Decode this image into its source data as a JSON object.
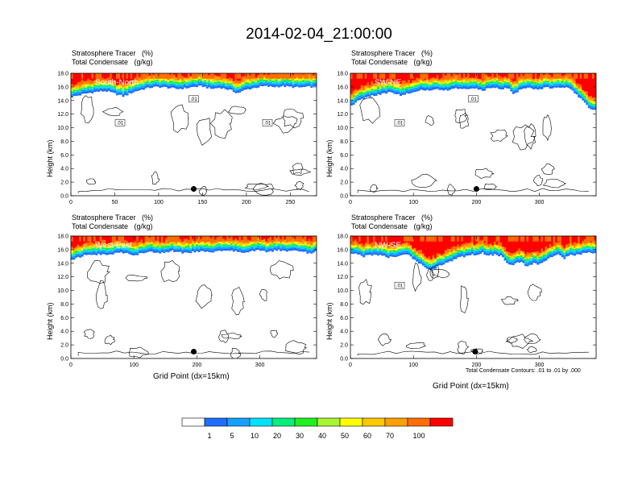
{
  "title": "2014-02-04_21:00:00",
  "panel_title_line1": "Stratosphere Tracer   (%)",
  "panel_title_line2": "Total Condensate   (g/kg)",
  "ylabel": "Height (km)",
  "xlabel": "Grid Point (dx=15km)",
  "contour_note": "Total Condensate Contours: .01 to .01 by .000",
  "colors": {
    "levels": [
      "#ffffff",
      "#1e6eff",
      "#14a0ff",
      "#00e0ff",
      "#00f07a",
      "#1ef01e",
      "#a8f532",
      "#ffff00",
      "#ffc800",
      "#ffa000",
      "#ff6e00",
      "#ff0000"
    ],
    "contour": "#000000"
  },
  "legend": {
    "labels": [
      "1",
      "5",
      "10",
      "20",
      "30",
      "40",
      "50",
      "60",
      "70",
      "100"
    ]
  },
  "chart_data": [
    {
      "type": "heatmap",
      "label": "South-North",
      "xlim": [
        0,
        280
      ],
      "ylim": [
        0,
        18
      ],
      "xticks": [
        "0",
        "50",
        "100",
        "150",
        "200",
        "250"
      ],
      "xtick_values": [
        0,
        50,
        100,
        150,
        200,
        250
      ],
      "yticks": [
        "0.0",
        "2.0",
        "4.0",
        "6.0",
        "8.0",
        "10.0",
        "12.0",
        "14.0",
        "16.0",
        "18.0"
      ],
      "tracer_base_km": [
        14.5,
        14.8,
        15.1,
        15.3,
        15.4,
        15.0,
        14.6,
        15.2,
        15.6,
        15.9,
        16.0,
        15.9,
        15.7,
        15.8,
        16.0,
        16.1,
        15.7,
        15.9,
        15.6,
        15.1,
        15.6,
        15.9,
        16.1,
        16.0,
        16.1,
        16.0,
        15.9,
        16.0,
        16.0
      ],
      "contour_labels": [
        ".01",
        ".01",
        ".01"
      ],
      "marker": {
        "x": 140,
        "y_km": 1.0
      }
    },
    {
      "type": "heatmap",
      "label": "SW-NE",
      "xlim": [
        0,
        390
      ],
      "ylim": [
        0,
        18
      ],
      "xticks": [
        "0",
        "100",
        "200",
        "300"
      ],
      "xtick_values": [
        0,
        100,
        200,
        300
      ],
      "yticks": [
        "0.0",
        "2.0",
        "4.0",
        "6.0",
        "8.0",
        "10.0",
        "12.0",
        "14.0",
        "16.0",
        "18.0"
      ],
      "tracer_base_km": [
        13.0,
        13.8,
        14.3,
        14.6,
        14.8,
        15.0,
        15.2,
        15.0,
        14.8,
        15.1,
        15.3,
        15.5,
        15.4,
        15.6,
        15.7,
        15.5,
        15.6,
        15.8,
        15.7,
        15.6,
        15.8,
        15.5,
        15.8,
        15.9,
        15.7,
        15.8,
        14.9,
        15.6,
        15.9,
        15.8,
        15.7,
        15.9,
        15.8,
        15.9,
        15.9,
        15.8,
        14.8,
        13.8,
        12.8,
        12.5
      ],
      "contour_labels": [
        ".01",
        ".01"
      ],
      "marker": {
        "x": 200,
        "y_km": 1.0
      }
    },
    {
      "type": "heatmap",
      "label": "West-East",
      "xlim": [
        0,
        390
      ],
      "ylim": [
        0,
        18
      ],
      "xticks": [
        "0",
        "100",
        "200",
        "300"
      ],
      "xtick_values": [
        0,
        100,
        200,
        300
      ],
      "yticks": [
        "0.0",
        "2.0",
        "4.0",
        "6.0",
        "8.0",
        "10.0",
        "12.0",
        "14.0",
        "16.0",
        "18.0"
      ],
      "tracer_base_km": [
        14.3,
        14.8,
        15.1,
        15.3,
        15.2,
        15.4,
        15.3,
        15.5,
        15.6,
        15.4,
        15.1,
        15.4,
        15.6,
        15.7,
        15.5,
        15.6,
        15.8,
        15.7,
        15.5,
        15.6,
        15.7,
        15.8,
        15.6,
        15.7,
        15.9,
        15.8,
        15.8,
        15.6,
        15.7,
        15.8,
        15.9,
        15.7,
        15.8,
        15.9,
        15.8,
        15.9,
        15.7,
        15.6,
        15.5,
        15.7
      ],
      "contour_labels": [],
      "marker": {
        "x": 195,
        "y_km": 1.0
      }
    },
    {
      "type": "heatmap",
      "label": "NW-SE",
      "xlim": [
        0,
        390
      ],
      "ylim": [
        0,
        18
      ],
      "xticks": [
        "0",
        "100",
        "200",
        "300"
      ],
      "xtick_values": [
        0,
        100,
        200,
        300
      ],
      "yticks": [
        "0.0",
        "2.0",
        "4.0",
        "6.0",
        "8.0",
        "10.0",
        "12.0",
        "14.0",
        "16.0",
        "18.0"
      ],
      "tracer_base_km": [
        15.5,
        15.4,
        15.0,
        15.2,
        15.3,
        15.1,
        14.8,
        15.0,
        15.2,
        15.4,
        14.5,
        14.0,
        13.2,
        13.1,
        13.6,
        14.0,
        14.3,
        14.8,
        15.0,
        15.2,
        15.3,
        15.5,
        15.1,
        15.3,
        15.0,
        14.0,
        13.8,
        14.3,
        13.5,
        14.0,
        13.9,
        14.5,
        15.0,
        15.2,
        14.7,
        15.3,
        15.2,
        15.4,
        15.6,
        15.5
      ],
      "contour_labels": [
        ".01"
      ],
      "marker": {
        "x": 198,
        "y_km": 1.0
      }
    }
  ]
}
